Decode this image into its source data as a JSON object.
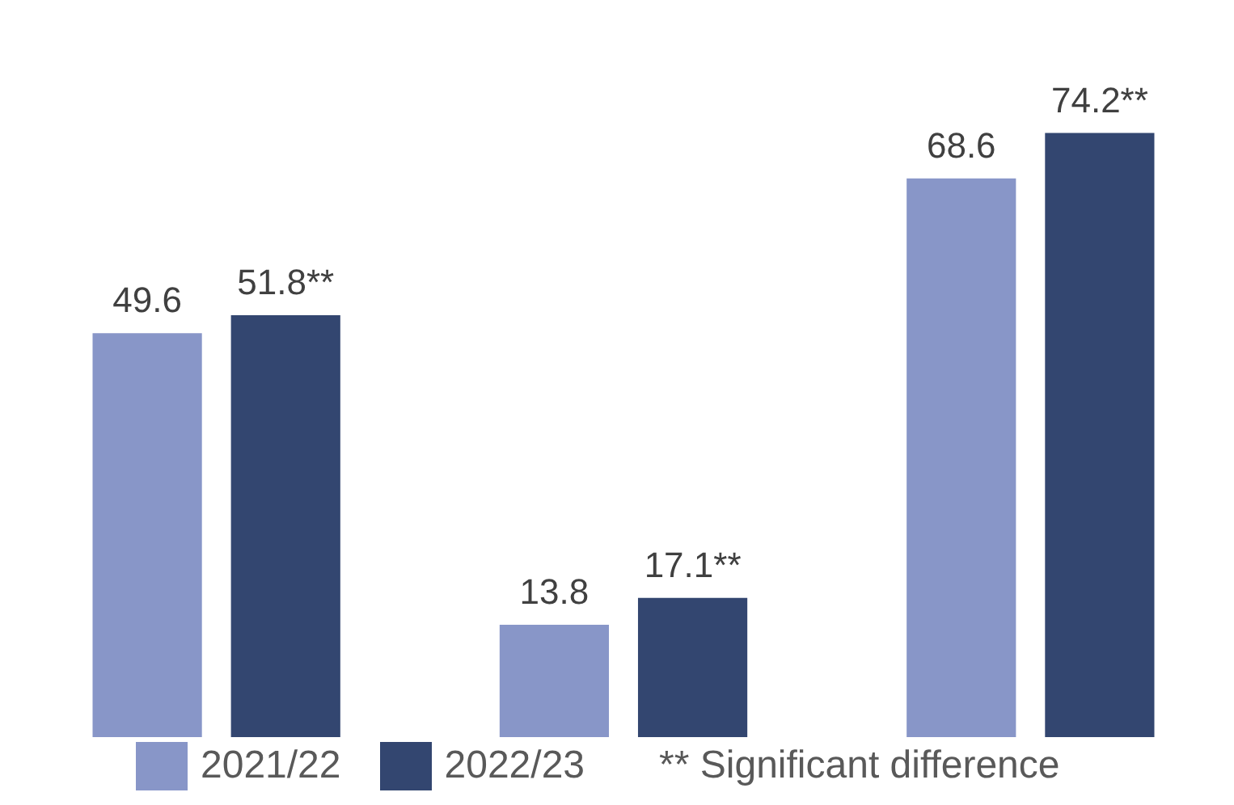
{
  "chart_data": {
    "type": "bar",
    "categories": [
      null,
      null,
      null
    ],
    "series": [
      {
        "name": "2021/22",
        "color": "#8896c8",
        "values": [
          49.6,
          13.8,
          68.6
        ],
        "value_labels": [
          "49.6",
          "13.8",
          "68.6"
        ]
      },
      {
        "name": "2022/23",
        "color": "#334670",
        "values": [
          51.8,
          17.1,
          74.2
        ],
        "value_labels": [
          "51.8**",
          "17.1**",
          "74.2**"
        ]
      }
    ],
    "legend": "bottom",
    "annotations": [
      "** Significant difference"
    ]
  }
}
